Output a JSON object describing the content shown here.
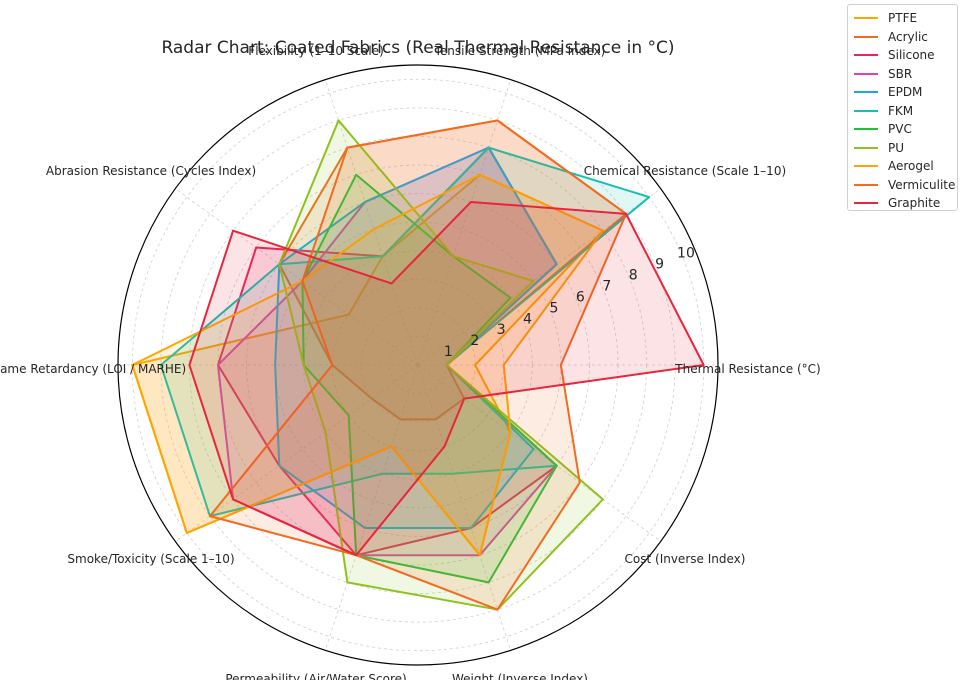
{
  "chart_data": {
    "type": "radar",
    "title": "Radar Chart: Coated Fabrics (Real Thermal Resistance in °C)",
    "axes": [
      "Thermal Resistance (°C)",
      "Chemical Resistance (Scale 1–10)",
      "Tensile Strength (MPa Index)",
      "Flexibility (1–10 Scale)",
      "Abrasion Resistance (Cycles Index)",
      "Flame Retardancy (LOI / MARHE)",
      "Smoke/Toxicity (Scale 1–10)",
      "Permeability (Air/Water Score)",
      "Weight (Inverse Index)",
      "Cost (Inverse Index)"
    ],
    "r_ticks": [
      "1",
      "2",
      "3",
      "4",
      "5",
      "6",
      "7",
      "8",
      "9",
      "10"
    ],
    "rlim": [
      0,
      10.5
    ],
    "grid": true,
    "legend_position": "outside-top-right",
    "series": [
      {
        "name": "PTFE",
        "color": "#ffa500",
        "values": [
          2.0,
          8.0,
          7.0,
          4.0,
          3.0,
          10.0,
          10.0,
          3.0,
          7.0,
          4.0
        ]
      },
      {
        "name": "Acrylic",
        "color": "#f26b21",
        "values": [
          1.0,
          9.0,
          9.0,
          8.0,
          6.0,
          3.0,
          2.0,
          2.0,
          2.0,
          2.0
        ]
      },
      {
        "name": "Silicone",
        "color": "#e8255a",
        "values": [
          1.0,
          6.0,
          8.0,
          4.0,
          7.0,
          7.0,
          6.0,
          7.0,
          6.0,
          6.0
        ]
      },
      {
        "name": "SBR",
        "color": "#e040b8",
        "values": [
          1.0,
          6.0,
          8.0,
          6.0,
          5.0,
          7.0,
          8.0,
          7.0,
          7.0,
          6.0
        ]
      },
      {
        "name": "EPDM",
        "color": "#1fa8e0",
        "values": [
          1.0,
          6.0,
          8.0,
          6.0,
          6.0,
          5.0,
          6.0,
          6.0,
          6.0,
          5.0
        ]
      },
      {
        "name": "FKM",
        "color": "#17bfb0",
        "values": [
          1.0,
          10.0,
          8.0,
          4.0,
          6.0,
          9.0,
          9.0,
          4.0,
          4.0,
          6.0
        ]
      },
      {
        "name": "PVC",
        "color": "#22c040",
        "values": [
          1.0,
          4.0,
          4.0,
          7.0,
          5.0,
          4.0,
          3.0,
          7.0,
          8.0,
          6.0
        ]
      },
      {
        "name": "PU",
        "color": "#8ec21e",
        "values": [
          1.0,
          5.0,
          4.0,
          9.0,
          6.0,
          4.0,
          4.0,
          8.0,
          9.0,
          8.0
        ]
      },
      {
        "name": "Aerogel",
        "color": "#ffa500",
        "values": [
          3.0,
          8.0,
          7.0,
          5.0,
          5.0,
          10.0,
          10.0,
          3.0,
          7.0,
          4.0
        ]
      },
      {
        "name": "Vermiculite",
        "color": "#f26b21",
        "values": [
          5.0,
          9.0,
          9.0,
          8.0,
          5.0,
          3.0,
          9.0,
          7.0,
          9.0,
          7.0
        ]
      },
      {
        "name": "Graphite",
        "color": "#e8253c",
        "values": [
          10.0,
          9.0,
          6.0,
          3.0,
          8.0,
          8.0,
          8.0,
          7.0,
          3.0,
          2.0
        ]
      }
    ]
  }
}
